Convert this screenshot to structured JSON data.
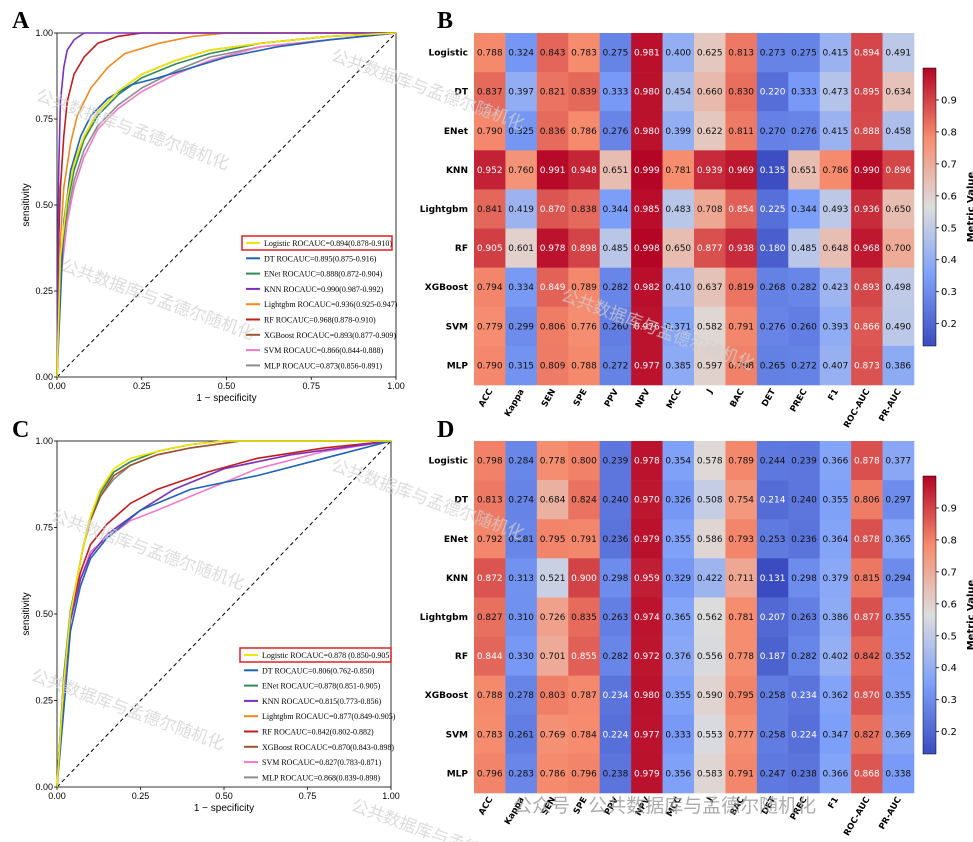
{
  "roc_labels": [
    "Logistic",
    "DT",
    "ENet",
    "KNN",
    "Lightgbm",
    "RF",
    "XGBoost",
    "SVM",
    "MLP"
  ],
  "roc_colors": [
    "#f2e600",
    "#1f63b4",
    "#2e8b57",
    "#7b2fbe",
    "#f08a1c",
    "#c21d1d",
    "#a0522d",
    "#f07ac8",
    "#8c8c8c"
  ],
  "chart_data": [
    {
      "panel": "A",
      "type": "line",
      "xlabel": "1 − specificity",
      "ylabel": "sensitivity",
      "xlim": [
        0,
        1
      ],
      "ylim": [
        0,
        1
      ],
      "xticks": [
        "0.00",
        "0.25",
        "0.50",
        "0.75",
        "1.00"
      ],
      "yticks": [
        "0.00",
        "0.25",
        "0.50",
        "0.75",
        "1.00"
      ],
      "legend_position": "lower-right",
      "highlighted_entry": "Logistic",
      "series": [
        {
          "name": "Logistic ROCAUC=0.894(0.878-0.910)",
          "x": [
            0,
            0.01,
            0.03,
            0.05,
            0.08,
            0.12,
            0.18,
            0.25,
            0.35,
            0.45,
            0.6,
            0.8,
            1
          ],
          "y": [
            0,
            0.35,
            0.52,
            0.62,
            0.7,
            0.77,
            0.83,
            0.88,
            0.92,
            0.95,
            0.97,
            0.99,
            1
          ]
        },
        {
          "name": "DT ROCAUC=0.895(0.875-0.916)",
          "x": [
            0,
            0.02,
            0.04,
            0.07,
            0.1,
            0.15,
            0.22,
            0.3,
            0.4,
            0.5,
            0.65,
            0.8,
            1
          ],
          "y": [
            0,
            0.45,
            0.6,
            0.7,
            0.76,
            0.81,
            0.85,
            0.87,
            0.9,
            0.93,
            0.96,
            0.98,
            1
          ]
        },
        {
          "name": "ENet ROCAUC=0.888(0.872-0.904)",
          "x": [
            0,
            0.01,
            0.03,
            0.05,
            0.08,
            0.12,
            0.18,
            0.25,
            0.35,
            0.45,
            0.6,
            0.8,
            1
          ],
          "y": [
            0,
            0.33,
            0.5,
            0.6,
            0.69,
            0.76,
            0.82,
            0.87,
            0.91,
            0.94,
            0.97,
            0.99,
            1
          ]
        },
        {
          "name": "KNN ROCAUC=0.990(0.987-0.992)",
          "x": [
            0,
            0.005,
            0.01,
            0.02,
            0.03,
            0.05,
            0.08,
            1
          ],
          "y": [
            0,
            0.6,
            0.8,
            0.9,
            0.95,
            0.98,
            1,
            1
          ]
        },
        {
          "name": "Lightgbm ROCAUC=0.936(0.925-0.947)",
          "x": [
            0,
            0.01,
            0.02,
            0.04,
            0.06,
            0.1,
            0.15,
            0.2,
            0.3,
            0.4,
            0.5,
            1
          ],
          "y": [
            0,
            0.4,
            0.55,
            0.68,
            0.76,
            0.84,
            0.9,
            0.94,
            0.97,
            0.99,
            1,
            1
          ]
        },
        {
          "name": "RF ROCAUC=0.968(0.878-0.910)",
          "x": [
            0,
            0.005,
            0.01,
            0.02,
            0.03,
            0.05,
            0.08,
            0.12,
            0.18,
            0.25,
            0.35,
            1
          ],
          "y": [
            0,
            0.4,
            0.55,
            0.7,
            0.8,
            0.88,
            0.93,
            0.97,
            0.99,
            1,
            1,
            1
          ]
        },
        {
          "name": "XGBoost ROCAUC=0.893(0.877-0.909)",
          "x": [
            0,
            0.01,
            0.03,
            0.05,
            0.08,
            0.12,
            0.18,
            0.25,
            0.35,
            0.45,
            0.6,
            0.8,
            1
          ],
          "y": [
            0,
            0.34,
            0.51,
            0.62,
            0.7,
            0.77,
            0.83,
            0.88,
            0.92,
            0.95,
            0.97,
            0.99,
            1
          ]
        },
        {
          "name": "SVM ROCAUC=0.866(0.844-0.888)",
          "x": [
            0,
            0.01,
            0.03,
            0.05,
            0.08,
            0.12,
            0.18,
            0.25,
            0.35,
            0.45,
            0.6,
            0.8,
            1
          ],
          "y": [
            0,
            0.28,
            0.45,
            0.55,
            0.64,
            0.72,
            0.78,
            0.83,
            0.88,
            0.92,
            0.96,
            0.98,
            1
          ]
        },
        {
          "name": "MLP ROCAUC=0.873(0.856-0.891)",
          "x": [
            0,
            0.01,
            0.03,
            0.05,
            0.08,
            0.12,
            0.18,
            0.25,
            0.35,
            0.45,
            0.6,
            0.8,
            1
          ],
          "y": [
            0,
            0.3,
            0.47,
            0.57,
            0.66,
            0.73,
            0.79,
            0.84,
            0.89,
            0.93,
            0.96,
            0.98,
            1
          ]
        }
      ]
    },
    {
      "panel": "C",
      "type": "line",
      "xlabel": "1 − specificity",
      "ylabel": "sensitivity",
      "xlim": [
        0,
        1
      ],
      "ylim": [
        0,
        1
      ],
      "xticks": [
        "0.00",
        "0.25",
        "0.50",
        "0.75",
        "1.00"
      ],
      "yticks": [
        "0.00",
        "0.25",
        "0.50",
        "0.75",
        "1.00"
      ],
      "legend_position": "lower-right",
      "highlighted_entry": "Logistic",
      "series": [
        {
          "name": "Logistic ROCAUC=0.878 (0.850-0.905)",
          "x": [
            0,
            0.02,
            0.04,
            0.06,
            0.08,
            0.1,
            0.13,
            0.17,
            0.22,
            0.3,
            0.4,
            0.5,
            1
          ],
          "y": [
            0,
            0.3,
            0.5,
            0.6,
            0.7,
            0.78,
            0.86,
            0.92,
            0.95,
            0.97,
            0.99,
            1,
            1
          ]
        },
        {
          "name": "DT ROCAUC=0.806(0.762-0.850)",
          "x": [
            0,
            0.02,
            0.04,
            0.07,
            0.1,
            0.15,
            0.25,
            0.4,
            0.6,
            0.8,
            1
          ],
          "y": [
            0,
            0.22,
            0.45,
            0.58,
            0.66,
            0.72,
            0.8,
            0.86,
            0.9,
            0.95,
            1
          ]
        },
        {
          "name": "ENet ROCAUC=0.878(0.851-0.905)",
          "x": [
            0,
            0.02,
            0.04,
            0.06,
            0.08,
            0.1,
            0.13,
            0.17,
            0.22,
            0.3,
            0.4,
            0.5,
            1
          ],
          "y": [
            0,
            0.32,
            0.51,
            0.6,
            0.7,
            0.78,
            0.85,
            0.91,
            0.94,
            0.97,
            0.99,
            1,
            1
          ]
        },
        {
          "name": "KNN ROCAUC=0.815(0.773-0.856)",
          "x": [
            0,
            0.02,
            0.04,
            0.07,
            0.1,
            0.15,
            0.25,
            0.35,
            0.5,
            0.7,
            1
          ],
          "y": [
            0,
            0.3,
            0.48,
            0.6,
            0.67,
            0.73,
            0.8,
            0.86,
            0.92,
            0.96,
            1
          ]
        },
        {
          "name": "Lightgbm ROCAUC=0.877(0.849-0.905)",
          "x": [
            0,
            0.02,
            0.04,
            0.06,
            0.08,
            0.1,
            0.13,
            0.17,
            0.22,
            0.3,
            0.4,
            0.5,
            1
          ],
          "y": [
            0,
            0.3,
            0.5,
            0.6,
            0.7,
            0.78,
            0.86,
            0.91,
            0.94,
            0.97,
            0.99,
            1,
            1
          ]
        },
        {
          "name": "RF ROCAUC=0.842(0.802-0.882)",
          "x": [
            0,
            0.02,
            0.04,
            0.07,
            0.1,
            0.15,
            0.22,
            0.3,
            0.45,
            0.6,
            0.8,
            1
          ],
          "y": [
            0,
            0.3,
            0.5,
            0.62,
            0.7,
            0.76,
            0.82,
            0.86,
            0.91,
            0.95,
            0.98,
            1
          ]
        },
        {
          "name": "XGBoost ROCAUC=0.870(0.843-0.898)",
          "x": [
            0,
            0.02,
            0.04,
            0.06,
            0.08,
            0.1,
            0.13,
            0.17,
            0.22,
            0.3,
            0.4,
            0.55,
            1
          ],
          "y": [
            0,
            0.3,
            0.5,
            0.6,
            0.7,
            0.77,
            0.84,
            0.9,
            0.93,
            0.96,
            0.98,
            1,
            1
          ]
        },
        {
          "name": "SVM ROCAUC=0.827(0.783-0.871)",
          "x": [
            0,
            0.02,
            0.04,
            0.07,
            0.1,
            0.15,
            0.22,
            0.3,
            0.45,
            0.6,
            0.8,
            1
          ],
          "y": [
            0,
            0.28,
            0.48,
            0.6,
            0.68,
            0.72,
            0.77,
            0.8,
            0.86,
            0.92,
            0.97,
            1
          ]
        },
        {
          "name": "MLP ROCAUC=0.868(0.839-0.898)",
          "x": [
            0,
            0.02,
            0.04,
            0.06,
            0.08,
            0.1,
            0.13,
            0.17,
            0.22,
            0.3,
            0.4,
            0.55,
            1
          ],
          "y": [
            0,
            0.3,
            0.49,
            0.6,
            0.7,
            0.77,
            0.84,
            0.89,
            0.93,
            0.96,
            0.98,
            1,
            1
          ]
        }
      ]
    },
    {
      "panel": "B",
      "type": "heatmap",
      "rows": [
        "Logistic",
        "DT",
        "ENet",
        "KNN",
        "Lightgbm",
        "RF",
        "XGBoost",
        "SVM",
        "MLP"
      ],
      "columns": [
        "ACC",
        "Kappa",
        "SEN",
        "SPE",
        "PPV",
        "NPV",
        "MCC",
        "J",
        "BAC",
        "DET",
        "PREC",
        "F1",
        "ROC-AUC",
        "PR-AUC"
      ],
      "values": [
        [
          0.788,
          0.324,
          0.843,
          0.783,
          0.275,
          0.981,
          0.4,
          0.625,
          0.813,
          0.273,
          0.275,
          0.415,
          0.894,
          0.491
        ],
        [
          0.837,
          0.397,
          0.821,
          0.839,
          0.333,
          0.98,
          0.454,
          0.66,
          0.83,
          0.22,
          0.333,
          0.473,
          0.895,
          0.634
        ],
        [
          0.79,
          0.325,
          0.836,
          0.786,
          0.276,
          0.98,
          0.399,
          0.622,
          0.811,
          0.27,
          0.276,
          0.415,
          0.888,
          0.458
        ],
        [
          0.952,
          0.76,
          0.991,
          0.948,
          0.651,
          0.999,
          0.781,
          0.939,
          0.969,
          0.135,
          0.651,
          0.786,
          0.99,
          0.896
        ],
        [
          0.841,
          0.419,
          0.87,
          0.838,
          0.344,
          0.985,
          0.483,
          0.708,
          0.854,
          0.225,
          0.344,
          0.493,
          0.936,
          0.65
        ],
        [
          0.905,
          0.601,
          0.978,
          0.898,
          0.485,
          0.998,
          0.65,
          0.877,
          0.938,
          0.18,
          0.485,
          0.648,
          0.968,
          0.7
        ],
        [
          0.794,
          0.334,
          0.849,
          0.789,
          0.282,
          0.982,
          0.41,
          0.637,
          0.819,
          0.268,
          0.282,
          0.423,
          0.893,
          0.498
        ],
        [
          0.779,
          0.299,
          0.806,
          0.776,
          0.26,
          0.976,
          0.371,
          0.582,
          0.791,
          0.276,
          0.26,
          0.393,
          0.866,
          0.49
        ],
        [
          0.79,
          0.315,
          0.809,
          0.788,
          0.272,
          0.977,
          0.385,
          0.597,
          0.798,
          0.265,
          0.272,
          0.407,
          0.873,
          0.386
        ]
      ],
      "colorbar_label": "Metric Value",
      "colorbar_ticks": [
        "0.2",
        "0.3",
        "0.4",
        "0.5",
        "0.6",
        "0.7",
        "0.8",
        "0.9"
      ],
      "colormap": "coolwarm"
    },
    {
      "panel": "D",
      "type": "heatmap",
      "rows": [
        "Logistic",
        "DT",
        "ENet",
        "KNN",
        "Lightgbm",
        "RF",
        "XGBoost",
        "SVM",
        "MLP"
      ],
      "columns": [
        "ACC",
        "Kappa",
        "SEN",
        "SPE",
        "PPV",
        "NPV",
        "MCC",
        "J",
        "BAC",
        "DET",
        "PREC",
        "F1",
        "ROC-AUC",
        "PR-AUC"
      ],
      "values": [
        [
          0.798,
          0.284,
          0.778,
          0.8,
          0.239,
          0.978,
          0.354,
          0.578,
          0.789,
          0.244,
          0.239,
          0.366,
          0.878,
          0.377
        ],
        [
          0.813,
          0.274,
          0.684,
          0.824,
          0.24,
          0.97,
          0.326,
          0.508,
          0.754,
          0.214,
          0.24,
          0.355,
          0.806,
          0.297
        ],
        [
          0.792,
          0.281,
          0.795,
          0.791,
          0.236,
          0.979,
          0.355,
          0.586,
          0.793,
          0.253,
          0.236,
          0.364,
          0.878,
          0.365
        ],
        [
          0.872,
          0.313,
          0.521,
          0.9,
          0.298,
          0.959,
          0.329,
          0.422,
          0.711,
          0.131,
          0.298,
          0.379,
          0.815,
          0.294
        ],
        [
          0.827,
          0.31,
          0.726,
          0.835,
          0.263,
          0.974,
          0.365,
          0.562,
          0.781,
          0.207,
          0.263,
          0.386,
          0.877,
          0.355
        ],
        [
          0.844,
          0.33,
          0.701,
          0.855,
          0.282,
          0.972,
          0.376,
          0.556,
          0.778,
          0.187,
          0.282,
          0.402,
          0.842,
          0.352
        ],
        [
          0.788,
          0.278,
          0.803,
          0.787,
          0.234,
          0.98,
          0.355,
          0.59,
          0.795,
          0.258,
          0.234,
          0.362,
          0.87,
          0.355
        ],
        [
          0.783,
          0.261,
          0.769,
          0.784,
          0.224,
          0.977,
          0.333,
          0.553,
          0.777,
          0.258,
          0.224,
          0.347,
          0.827,
          0.369
        ],
        [
          0.796,
          0.283,
          0.786,
          0.796,
          0.238,
          0.979,
          0.356,
          0.583,
          0.791,
          0.247,
          0.238,
          0.366,
          0.868,
          0.338
        ]
      ],
      "colorbar_label": "Metric Value",
      "colorbar_ticks": [
        "0.2",
        "0.3",
        "0.4",
        "0.5",
        "0.6",
        "0.7",
        "0.8",
        "0.9"
      ],
      "colormap": "coolwarm"
    }
  ],
  "watermarks": [
    "公共数据库与孟德尔随机化",
    "公众号 · 公共数据库与孟德尔随机化"
  ]
}
